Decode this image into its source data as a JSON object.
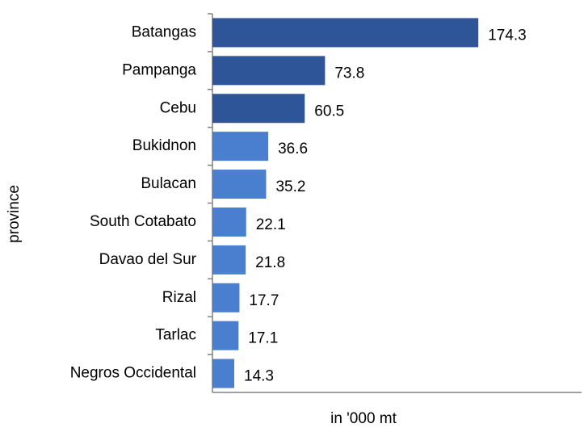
{
  "chart_data": {
    "type": "hbar",
    "y_label": "province",
    "x_label": "in '000 mt",
    "categories": [
      "Batangas",
      "Pampanga",
      "Cebu",
      "Bukidnon",
      "Bulacan",
      "South Cotabato",
      "Davao del Sur",
      "Rizal",
      "Tarlac",
      "Negros Occidental"
    ],
    "values": [
      174.3,
      73.8,
      60.5,
      36.6,
      35.2,
      22.1,
      21.8,
      17.7,
      17.1,
      14.3
    ],
    "colors": [
      "#2e5597",
      "#2e5597",
      "#2e5597",
      "#4a7fd0",
      "#4a7fd0",
      "#4a7fd0",
      "#4a7fd0",
      "#4a7fd0",
      "#4a7fd0",
      "#4a7fd0"
    ],
    "xlim": [
      0,
      242
    ]
  }
}
